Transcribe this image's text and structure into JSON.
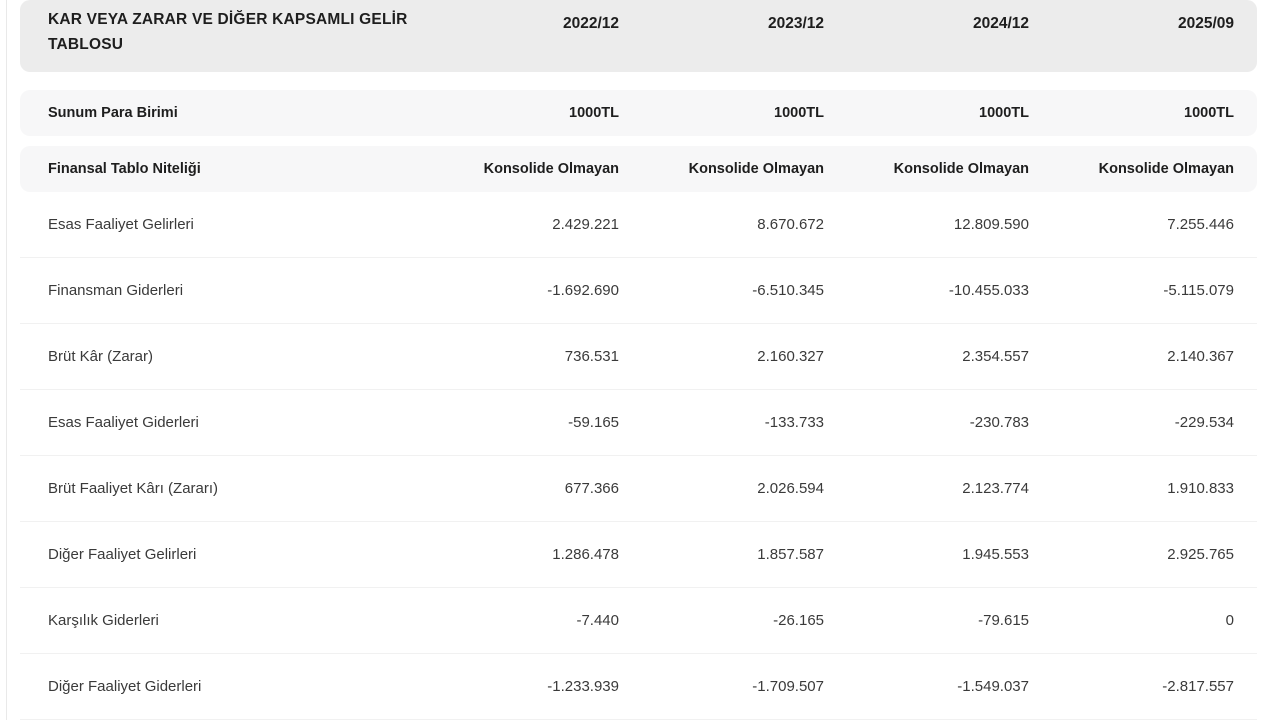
{
  "table": {
    "title": "KAR VEYA ZARAR VE DİĞER KAPSAMLI GELİR TABLOSU",
    "periods": [
      "2022/12",
      "2023/12",
      "2024/12",
      "2025/09"
    ],
    "meta_rows": [
      {
        "label": "Sunum Para Birimi",
        "values": [
          "1000TL",
          "1000TL",
          "1000TL",
          "1000TL"
        ]
      },
      {
        "label": "Finansal Tablo Niteliği",
        "values": [
          "Konsolide Olmayan",
          "Konsolide Olmayan",
          "Konsolide Olmayan",
          "Konsolide Olmayan"
        ]
      }
    ],
    "rows": [
      {
        "label": "Esas Faaliyet Gelirleri",
        "values": [
          "2.429.221",
          "8.670.672",
          "12.809.590",
          "7.255.446"
        ]
      },
      {
        "label": "Finansman Giderleri",
        "values": [
          "-1.692.690",
          "-6.510.345",
          "-10.455.033",
          "-5.115.079"
        ]
      },
      {
        "label": "Brüt Kâr (Zarar)",
        "values": [
          "736.531",
          "2.160.327",
          "2.354.557",
          "2.140.367"
        ]
      },
      {
        "label": "Esas Faaliyet Giderleri",
        "values": [
          "-59.165",
          "-133.733",
          "-230.783",
          "-229.534"
        ]
      },
      {
        "label": "Brüt Faaliyet Kârı (Zararı)",
        "values": [
          "677.366",
          "2.026.594",
          "2.123.774",
          "1.910.833"
        ]
      },
      {
        "label": "Diğer Faaliyet Gelirleri",
        "values": [
          "1.286.478",
          "1.857.587",
          "1.945.553",
          "2.925.765"
        ]
      },
      {
        "label": "Karşılık Giderleri",
        "values": [
          "-7.440",
          "-26.165",
          "-79.615",
          "0"
        ]
      },
      {
        "label": "Diğer Faaliyet Giderleri",
        "values": [
          "-1.233.939",
          "-1.709.507",
          "-1.549.037",
          "-2.817.557"
        ]
      }
    ],
    "colors": {
      "header_bg": "#ececec",
      "meta_bg": "#f7f7f8",
      "row_border": "#f1f1f1",
      "text_dark": "#1e1e1e",
      "text_body": "#3a3a3a"
    }
  }
}
